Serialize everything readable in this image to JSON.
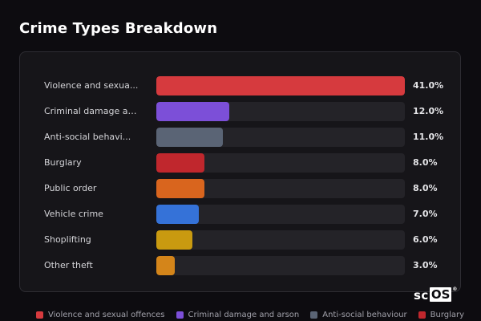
{
  "title": "Crime Types Breakdown",
  "watermark": {
    "left": "sc",
    "boxed": "OS",
    "reg": "®"
  },
  "chart_data": {
    "type": "bar",
    "orientation": "horizontal",
    "categories": [
      "Violence and sexua...",
      "Criminal damage an...",
      "Anti-social behavi...",
      "Burglary",
      "Public order",
      "Vehicle crime",
      "Shoplifting",
      "Other theft"
    ],
    "values": [
      41.0,
      12.0,
      11.0,
      8.0,
      8.0,
      7.0,
      6.0,
      3.0
    ],
    "value_labels": [
      "41.0%",
      "12.0%",
      "11.0%",
      "8.0%",
      "8.0%",
      "7.0%",
      "6.0%",
      "3.0%"
    ],
    "colors": [
      "#d63a3e",
      "#7c4fd8",
      "#5a6475",
      "#c0272d",
      "#d9651e",
      "#3572d8",
      "#c99a10",
      "#d4851a"
    ],
    "xlim": [
      0,
      41.0
    ],
    "legend_position": "bottom"
  },
  "legend": [
    {
      "label": "Violence and sexual offences",
      "color": "#d63a3e"
    },
    {
      "label": "Criminal damage and arson",
      "color": "#7c4fd8"
    },
    {
      "label": "Anti-social behaviour",
      "color": "#5a6475"
    },
    {
      "label": "Burglary",
      "color": "#c0272d"
    }
  ]
}
